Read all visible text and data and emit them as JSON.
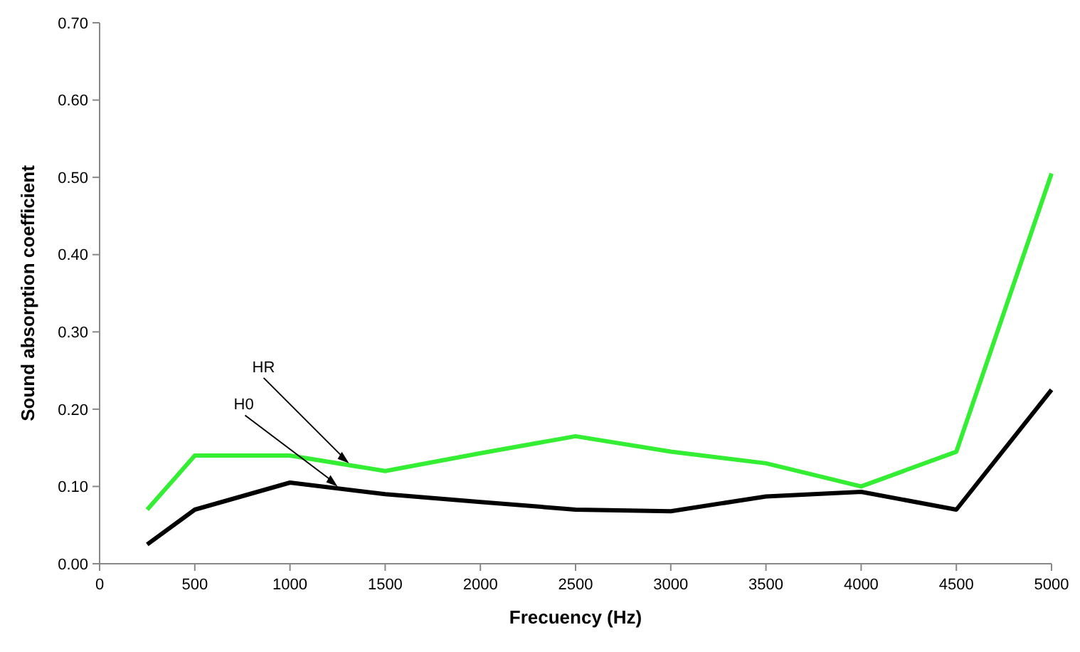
{
  "chart_data": {
    "type": "line",
    "xlabel": "Frecuency (Hz)",
    "ylabel": "Sound absorption coefficient",
    "x": [
      250,
      500,
      1000,
      1500,
      2000,
      2500,
      3000,
      3500,
      4000,
      4500,
      5000
    ],
    "series": [
      {
        "color": "#33ee33",
        "values": [
          0.07,
          0.14,
          0.14,
          0.12,
          0.143,
          0.165,
          0.145,
          0.13,
          0.1,
          0.145,
          0.505
        ]
      },
      {
        "color": "#000000",
        "values": [
          0.025,
          0.07,
          0.105,
          0.09,
          0.08,
          0.07,
          0.068,
          0.087,
          0.093,
          0.07,
          0.225
        ]
      }
    ],
    "xlim": [
      0,
      5000
    ],
    "xticks": [
      0,
      500,
      1000,
      1500,
      2000,
      2500,
      3000,
      3500,
      4000,
      4500,
      5000
    ],
    "ylim": [
      0,
      0.7
    ],
    "yticks": [
      {
        "value": 0,
        "label": "0.00"
      },
      {
        "value": 0.1,
        "label": "0.10"
      },
      {
        "value": 0.2,
        "label": "0.20"
      },
      {
        "value": 0.3,
        "label": "0.30"
      },
      {
        "value": 0.4,
        "label": "0.40"
      },
      {
        "value": 0.5,
        "label": "0.50"
      },
      {
        "value": 0.6,
        "label": "0.60"
      },
      {
        "value": 0.7,
        "label": "0.70"
      }
    ],
    "annotations": [
      {
        "text": "HR",
        "x": 1310,
        "y": 0.13
      },
      {
        "text": "H0",
        "x": 1250,
        "y": 0.1
      }
    ],
    "grid": false,
    "marker": "none",
    "line_style": "solid"
  }
}
